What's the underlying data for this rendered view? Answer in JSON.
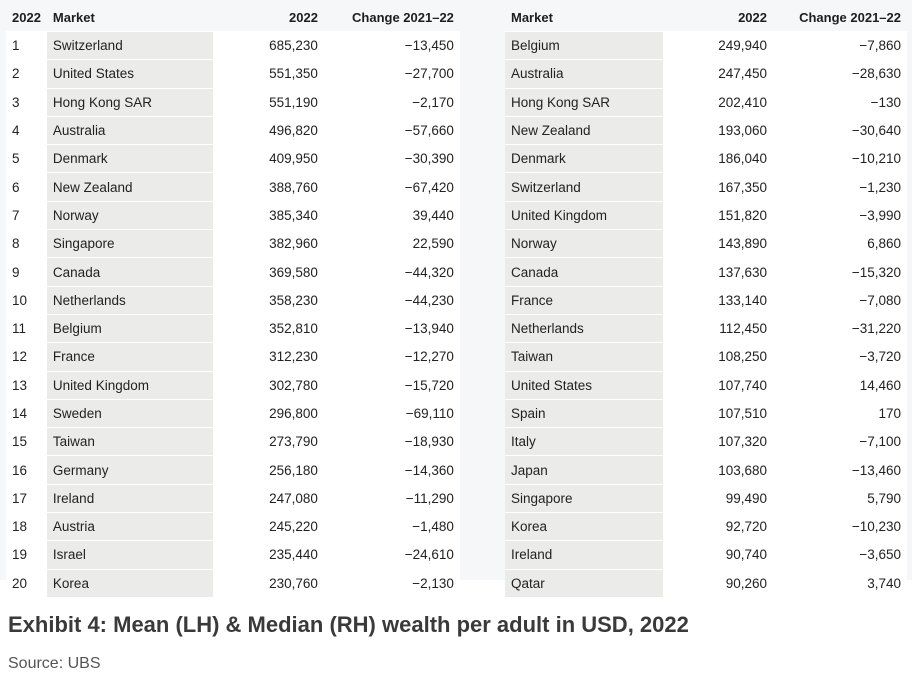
{
  "left_table": {
    "headers": {
      "rank": "2022",
      "market": "Market",
      "value": "2022",
      "change": "Change 2021–22"
    },
    "rows": [
      {
        "rank": "1",
        "market": "Switzerland",
        "value": "685,230",
        "change": "−13,450"
      },
      {
        "rank": "2",
        "market": "United States",
        "value": "551,350",
        "change": "−27,700"
      },
      {
        "rank": "3",
        "market": "Hong Kong SAR",
        "value": "551,190",
        "change": "−2,170"
      },
      {
        "rank": "4",
        "market": "Australia",
        "value": "496,820",
        "change": "−57,660"
      },
      {
        "rank": "5",
        "market": "Denmark",
        "value": "409,950",
        "change": "−30,390"
      },
      {
        "rank": "6",
        "market": "New Zealand",
        "value": "388,760",
        "change": "−67,420"
      },
      {
        "rank": "7",
        "market": "Norway",
        "value": "385,340",
        "change": "39,440"
      },
      {
        "rank": "8",
        "market": "Singapore",
        "value": "382,960",
        "change": "22,590"
      },
      {
        "rank": "9",
        "market": "Canada",
        "value": "369,580",
        "change": "−44,320"
      },
      {
        "rank": "10",
        "market": "Netherlands",
        "value": "358,230",
        "change": "−44,230"
      },
      {
        "rank": "11",
        "market": "Belgium",
        "value": "352,810",
        "change": "−13,940"
      },
      {
        "rank": "12",
        "market": "France",
        "value": "312,230",
        "change": "−12,270"
      },
      {
        "rank": "13",
        "market": "United Kingdom",
        "value": "302,780",
        "change": "−15,720"
      },
      {
        "rank": "14",
        "market": "Sweden",
        "value": "296,800",
        "change": "−69,110"
      },
      {
        "rank": "15",
        "market": "Taiwan",
        "value": "273,790",
        "change": "−18,930"
      },
      {
        "rank": "16",
        "market": "Germany",
        "value": "256,180",
        "change": "−14,360"
      },
      {
        "rank": "17",
        "market": "Ireland",
        "value": "247,080",
        "change": "−11,290"
      },
      {
        "rank": "18",
        "market": "Austria",
        "value": "245,220",
        "change": "−1,480"
      },
      {
        "rank": "19",
        "market": "Israel",
        "value": "235,440",
        "change": "−24,610"
      },
      {
        "rank": "20",
        "market": "Korea",
        "value": "230,760",
        "change": "−2,130"
      }
    ]
  },
  "right_table": {
    "headers": {
      "market": "Market",
      "value": "2022",
      "change": "Change 2021–22"
    },
    "rows": [
      {
        "market": "Belgium",
        "value": "249,940",
        "change": "−7,860"
      },
      {
        "market": "Australia",
        "value": "247,450",
        "change": "−28,630"
      },
      {
        "market": "Hong Kong SAR",
        "value": "202,410",
        "change": "−130"
      },
      {
        "market": "New Zealand",
        "value": "193,060",
        "change": "−30,640"
      },
      {
        "market": "Denmark",
        "value": "186,040",
        "change": "−10,210"
      },
      {
        "market": "Switzerland",
        "value": "167,350",
        "change": "−1,230"
      },
      {
        "market": "United Kingdom",
        "value": "151,820",
        "change": "−3,990"
      },
      {
        "market": "Norway",
        "value": "143,890",
        "change": "6,860"
      },
      {
        "market": "Canada",
        "value": "137,630",
        "change": "−15,320"
      },
      {
        "market": "France",
        "value": "133,140",
        "change": "−7,080"
      },
      {
        "market": "Netherlands",
        "value": "112,450",
        "change": "−31,220"
      },
      {
        "market": "Taiwan",
        "value": "108,250",
        "change": "−3,720"
      },
      {
        "market": "United States",
        "value": "107,740",
        "change": "14,460"
      },
      {
        "market": "Spain",
        "value": "107,510",
        "change": "170"
      },
      {
        "market": "Italy",
        "value": "107,320",
        "change": "−7,100"
      },
      {
        "market": "Japan",
        "value": "103,680",
        "change": "−13,460"
      },
      {
        "market": "Singapore",
        "value": "99,490",
        "change": "5,790"
      },
      {
        "market": "Korea",
        "value": "92,720",
        "change": "−10,230"
      },
      {
        "market": "Ireland",
        "value": "90,740",
        "change": "−3,650"
      },
      {
        "market": "Qatar",
        "value": "90,260",
        "change": "3,740"
      }
    ]
  },
  "caption": "Exhibit 4: Mean (LH) & Median (RH) wealth per adult in USD, 2022",
  "source": "Source: UBS",
  "colors": {
    "market_column_bg": "#ebebe9",
    "panel_bg": "#f6f7f9",
    "caption": "#3a3a3a"
  }
}
